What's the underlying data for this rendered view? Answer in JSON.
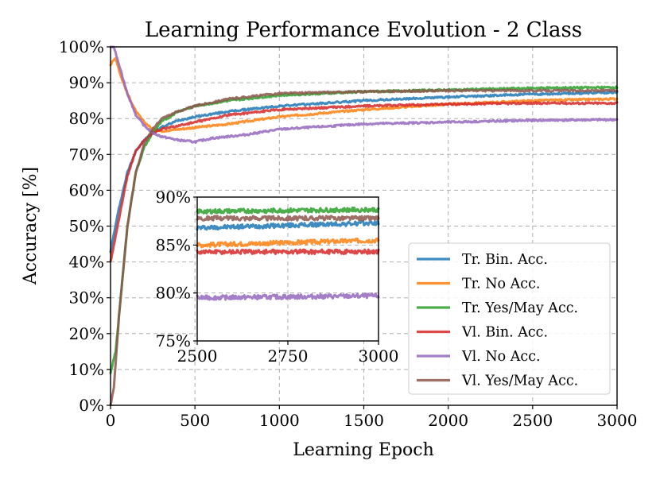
{
  "chart_data": {
    "type": "line",
    "title": "Learning Performance Evolution - 2 Class",
    "xlabel": "Learning Epoch",
    "ylabel": "Accuracy [%]",
    "xlim": [
      0,
      3000
    ],
    "ylim": [
      0,
      100
    ],
    "x_ticks": [
      0,
      500,
      1000,
      1500,
      2000,
      2500,
      3000
    ],
    "x_tick_labels": [
      "0",
      "500",
      "1000",
      "1500",
      "2000",
      "2500",
      "3000"
    ],
    "y_ticks": [
      0,
      10,
      20,
      30,
      40,
      50,
      60,
      70,
      80,
      90,
      100
    ],
    "y_tick_labels": [
      "0%",
      "10%",
      "20%",
      "30%",
      "40%",
      "50%",
      "60%",
      "70%",
      "80%",
      "90%",
      "100%"
    ],
    "grid": true,
    "legend_position": "lower-right",
    "series": [
      {
        "name": "Tr. Bin. Acc.",
        "color": "#1f77b4",
        "x": [
          0,
          50,
          100,
          150,
          200,
          250,
          300,
          400,
          500,
          700,
          1000,
          1500,
          2000,
          2500,
          3000
        ],
        "y": [
          43,
          55,
          65,
          71,
          74,
          76,
          77.5,
          79.5,
          80.5,
          82,
          83.5,
          85,
          86,
          86.8,
          87.3
        ]
      },
      {
        "name": "Tr. No Acc.",
        "color": "#ff7f0e",
        "x": [
          0,
          30,
          60,
          100,
          150,
          200,
          250,
          300,
          400,
          500,
          700,
          1000,
          1500,
          2000,
          2500,
          3000
        ],
        "y": [
          95,
          97,
          92,
          87,
          82,
          79,
          77,
          76.5,
          77,
          77.5,
          78.5,
          80.5,
          82.5,
          84,
          85,
          85.5
        ]
      },
      {
        "name": "Tr. Yes/May Acc.",
        "color": "#2ca02c",
        "x": [
          0,
          30,
          60,
          100,
          150,
          200,
          250,
          300,
          400,
          500,
          700,
          1000,
          1500,
          2000,
          2500,
          3000
        ],
        "y": [
          9,
          15,
          30,
          50,
          65,
          72,
          76,
          79,
          82,
          83.5,
          85,
          86.5,
          87.5,
          88,
          88.5,
          88.7
        ]
      },
      {
        "name": "Vl. Bin. Acc.",
        "color": "#d62728",
        "x": [
          0,
          50,
          100,
          150,
          200,
          250,
          300,
          400,
          500,
          700,
          1000,
          1500,
          2000,
          2500,
          3000
        ],
        "y": [
          40,
          52,
          64,
          71,
          74,
          76,
          77,
          78,
          79,
          81,
          82.5,
          83.5,
          84,
          84.3,
          84.3
        ]
      },
      {
        "name": "Vl. No Acc.",
        "color": "#9467bd",
        "x": [
          0,
          20,
          50,
          100,
          150,
          200,
          250,
          300,
          400,
          500,
          600,
          800,
          1000,
          1500,
          2000,
          2500,
          3000
        ],
        "y": [
          100,
          100,
          95,
          87,
          81,
          78,
          76,
          75,
          74,
          73.5,
          74.5,
          75.5,
          77,
          78.5,
          79,
          79.5,
          79.7
        ]
      },
      {
        "name": "Vl. Yes/May Acc.",
        "color": "#8c564b",
        "x": [
          0,
          20,
          50,
          100,
          150,
          200,
          250,
          300,
          400,
          500,
          700,
          1000,
          1500,
          2000,
          2500,
          3000
        ],
        "y": [
          0,
          5,
          25,
          50,
          65,
          73,
          77,
          80,
          82,
          83.5,
          85.5,
          87,
          87.5,
          87.8,
          87.8,
          87.8
        ]
      }
    ],
    "inset": {
      "xlim": [
        2500,
        3000
      ],
      "ylim": [
        75,
        90
      ],
      "x_ticks": [
        2500,
        2750,
        3000
      ],
      "x_tick_labels": [
        "2500",
        "2750",
        "3000"
      ],
      "y_ticks": [
        75,
        80,
        85,
        90
      ],
      "y_tick_labels": [
        "75%",
        "80%",
        "85%",
        "90%"
      ]
    }
  }
}
